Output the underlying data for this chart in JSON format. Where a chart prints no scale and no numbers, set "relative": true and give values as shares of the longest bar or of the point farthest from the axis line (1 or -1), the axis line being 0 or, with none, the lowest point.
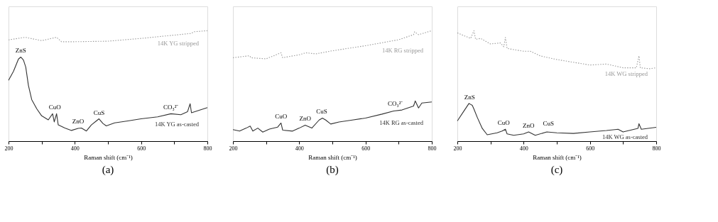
{
  "chart_data": [
    {
      "type": "line",
      "title": "(a)",
      "xlabel": "Raman shift (cm⁻¹)",
      "relative": true,
      "xlim": [
        200,
        800
      ],
      "xticks": [
        200,
        {
          "value": 300,
          "label": null
        },
        400,
        {
          "value": 500,
          "label": null
        },
        600,
        {
          "value": 700,
          "label": null
        },
        800
      ],
      "grid": false,
      "annotations": [
        {
          "text": "ZnS",
          "x": 237,
          "y": 0.761
        },
        {
          "text": "CuO",
          "x": 340,
          "y": 0.248
        },
        {
          "text": "ZnO",
          "x": 410,
          "y": 0.12
        },
        {
          "text": "CuS",
          "x": 473,
          "y": 0.202
        },
        {
          "text": "CO₃²⁻",
          "x": 690,
          "y": 0.248
        }
      ],
      "series": [
        {
          "name": "14K YG stripped",
          "color": "#9a9a9a",
          "line_style": "dotted",
          "x": [
            200,
            250,
            300,
            345,
            360,
            400,
            500,
            600,
            700,
            750,
            760,
            800
          ],
          "values": [
            0.917,
            0.94,
            0.91,
            0.94,
            0.9,
            0.9,
            0.905,
            0.93,
            0.96,
            0.975,
            0.99,
            1.0
          ]
        },
        {
          "name": "14K YG as-casted",
          "color": "#333333",
          "line_style": "solid",
          "x": [
            200,
            215,
            230,
            237,
            245,
            252,
            260,
            270,
            285,
            300,
            320,
            333,
            338,
            345,
            350,
            370,
            390,
            410,
            420,
            435,
            450,
            465,
            473,
            485,
            495,
            520,
            560,
            600,
            650,
            690,
            720,
            740,
            748,
            752,
            780,
            800
          ],
          "values": [
            0.55,
            0.633,
            0.743,
            0.761,
            0.734,
            0.67,
            0.505,
            0.376,
            0.294,
            0.229,
            0.193,
            0.248,
            0.174,
            0.248,
            0.147,
            0.119,
            0.097,
            0.116,
            0.119,
            0.092,
            0.147,
            0.183,
            0.202,
            0.16,
            0.138,
            0.165,
            0.183,
            0.202,
            0.22,
            0.248,
            0.239,
            0.266,
            0.339,
            0.257,
            0.284,
            0.303
          ]
        }
      ]
    },
    {
      "type": "line",
      "title": "(b)",
      "xlabel": "Raman shift (cm⁻¹)",
      "relative": true,
      "xlim": [
        200,
        800
      ],
      "xticks": [
        200,
        {
          "value": 300,
          "label": null
        },
        400,
        {
          "value": 500,
          "label": null
        },
        600,
        {
          "value": 700,
          "label": null
        },
        800
      ],
      "grid": false,
      "annotations": [
        {
          "text": "CuO",
          "x": 345,
          "y": 0.164
        },
        {
          "text": "ZnO",
          "x": 418,
          "y": 0.145
        },
        {
          "text": "CuS",
          "x": 468,
          "y": 0.209
        },
        {
          "text": "CO₃²⁻",
          "x": 690,
          "y": 0.282
        }
      ],
      "series": [
        {
          "name": "14K RG  stripped",
          "color": "#9a9a9a",
          "line_style": "dotted",
          "x": [
            200,
            250,
            255,
            300,
            345,
            350,
            400,
            420,
            450,
            500,
            600,
            700,
            745,
            748,
            760,
            800
          ],
          "values": [
            0.755,
            0.773,
            0.755,
            0.745,
            0.8,
            0.755,
            0.782,
            0.8,
            0.79,
            0.818,
            0.864,
            0.918,
            0.964,
            0.99,
            0.964,
            1.0
          ]
        },
        {
          "name": "14K RG  as-casted",
          "color": "#333333",
          "line_style": "solid",
          "x": [
            200,
            220,
            240,
            252,
            260,
            275,
            290,
            310,
            335,
            345,
            350,
            380,
            400,
            418,
            438,
            460,
            470,
            480,
            495,
            520,
            560,
            600,
            650,
            685,
            710,
            745,
            750,
            760,
            770,
            800
          ],
          "values": [
            0.104,
            0.091,
            0.118,
            0.136,
            0.091,
            0.118,
            0.082,
            0.109,
            0.127,
            0.164,
            0.1,
            0.091,
            0.118,
            0.145,
            0.118,
            0.191,
            0.209,
            0.191,
            0.155,
            0.173,
            0.191,
            0.209,
            0.245,
            0.273,
            0.282,
            0.318,
            0.364,
            0.3,
            0.345,
            0.355
          ]
        }
      ]
    },
    {
      "type": "line",
      "title": "(c)",
      "xlabel": "Raman shift (cm⁻¹)",
      "relative": true,
      "xlim": [
        200,
        800
      ],
      "xticks": [
        200,
        {
          "value": 300,
          "label": null
        },
        400,
        {
          "value": 500,
          "label": null
        },
        600,
        {
          "value": 700,
          "label": null
        },
        800
      ],
      "grid": false,
      "annotations": [
        {
          "text": "ZnS",
          "x": 237,
          "y": 0.341
        },
        {
          "text": "CuO",
          "x": 340,
          "y": 0.108
        },
        {
          "text": "ZnO",
          "x": 415,
          "y": 0.083
        },
        {
          "text": "CuS",
          "x": 475,
          "y": 0.1
        }
      ],
      "series": [
        {
          "name": "14K WG stripped",
          "color": "#9a9a9a",
          "line_style": "dotted",
          "x": [
            200,
            240,
            250,
            255,
            270,
            300,
            330,
            340,
            345,
            350,
            400,
            420,
            450,
            500,
            550,
            600,
            650,
            700,
            740,
            748,
            752,
            780,
            800
          ],
          "values": [
            0.98,
            0.93,
            1.0,
            0.922,
            0.93,
            0.88,
            0.889,
            0.855,
            0.939,
            0.839,
            0.814,
            0.814,
            0.772,
            0.739,
            0.714,
            0.689,
            0.698,
            0.664,
            0.664,
            0.772,
            0.664,
            0.656,
            0.664
          ]
        },
        {
          "name": "14K WG as-casted",
          "color": "#333333",
          "line_style": "solid",
          "x": [
            200,
            220,
            235,
            245,
            250,
            260,
            275,
            290,
            320,
            335,
            345,
            350,
            370,
            400,
            415,
            435,
            470,
            500,
            550,
            600,
            650,
            685,
            700,
            745,
            748,
            755,
            800
          ],
          "values": [
            0.183,
            0.274,
            0.341,
            0.324,
            0.291,
            0.216,
            0.116,
            0.058,
            0.075,
            0.091,
            0.108,
            0.066,
            0.053,
            0.066,
            0.083,
            0.053,
            0.083,
            0.075,
            0.07,
            0.083,
            0.096,
            0.108,
            0.083,
            0.116,
            0.158,
            0.108,
            0.125
          ]
        }
      ]
    }
  ]
}
